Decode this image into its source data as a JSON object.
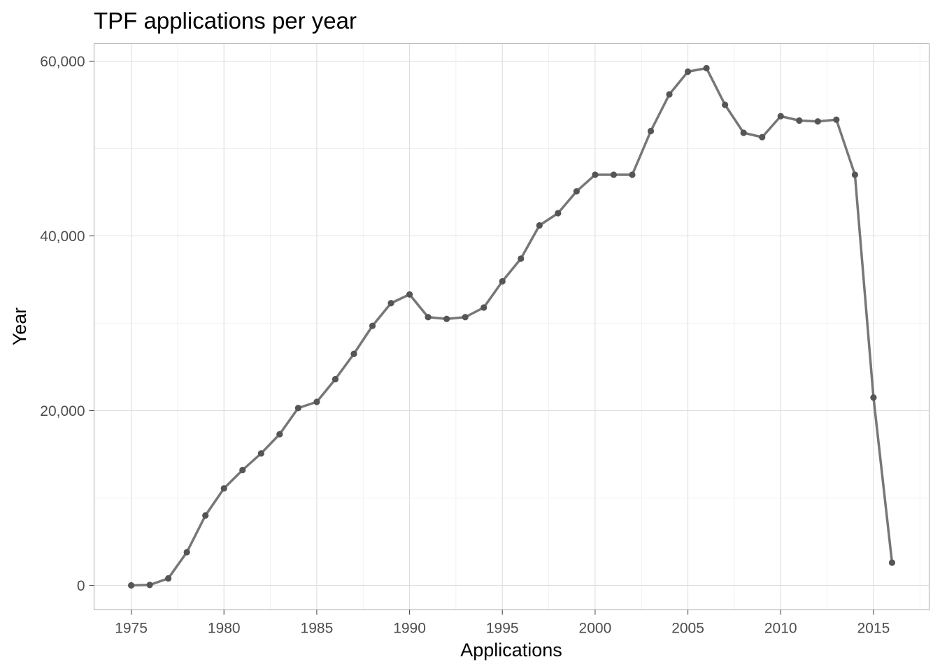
{
  "chart_data": {
    "type": "line",
    "title": "TPF applications per year",
    "xlabel": "Applications",
    "ylabel": "Year",
    "xlim": [
      1973,
      2018
    ],
    "ylim": [
      -2800,
      62000
    ],
    "x_ticks": [
      1975,
      1980,
      1985,
      1990,
      1995,
      2000,
      2005,
      2010,
      2015
    ],
    "y_ticks": [
      0,
      20000,
      40000,
      60000
    ],
    "y_tick_labels": [
      "0",
      "20,000",
      "40,000",
      "60,000"
    ],
    "grid": true,
    "legend": "none",
    "colors": {
      "line": "#777777",
      "point": "#555555"
    },
    "series": [
      {
        "x": [
          1975,
          1976,
          1977,
          1978,
          1979,
          1980,
          1981,
          1982,
          1983,
          1984,
          1985,
          1986,
          1987,
          1988,
          1989,
          1990,
          1991,
          1992,
          1993,
          1994,
          1995,
          1996,
          1997,
          1998,
          1999,
          2000,
          2001,
          2002,
          2003,
          2004,
          2005,
          2006,
          2007,
          2008,
          2009,
          2010,
          2011,
          2012,
          2013,
          2014,
          2015,
          2016
        ],
        "values": [
          0,
          50,
          800,
          3800,
          8000,
          11100,
          13200,
          15100,
          17300,
          20300,
          21000,
          23600,
          26500,
          29700,
          32300,
          33300,
          30700,
          30500,
          30700,
          31800,
          34800,
          37400,
          41200,
          42600,
          45100,
          47000,
          47000,
          47000,
          52000,
          56200,
          58800,
          59200,
          55000,
          51800,
          51300,
          53700,
          53200,
          53100,
          53300,
          47000,
          21500,
          2600
        ]
      }
    ]
  }
}
